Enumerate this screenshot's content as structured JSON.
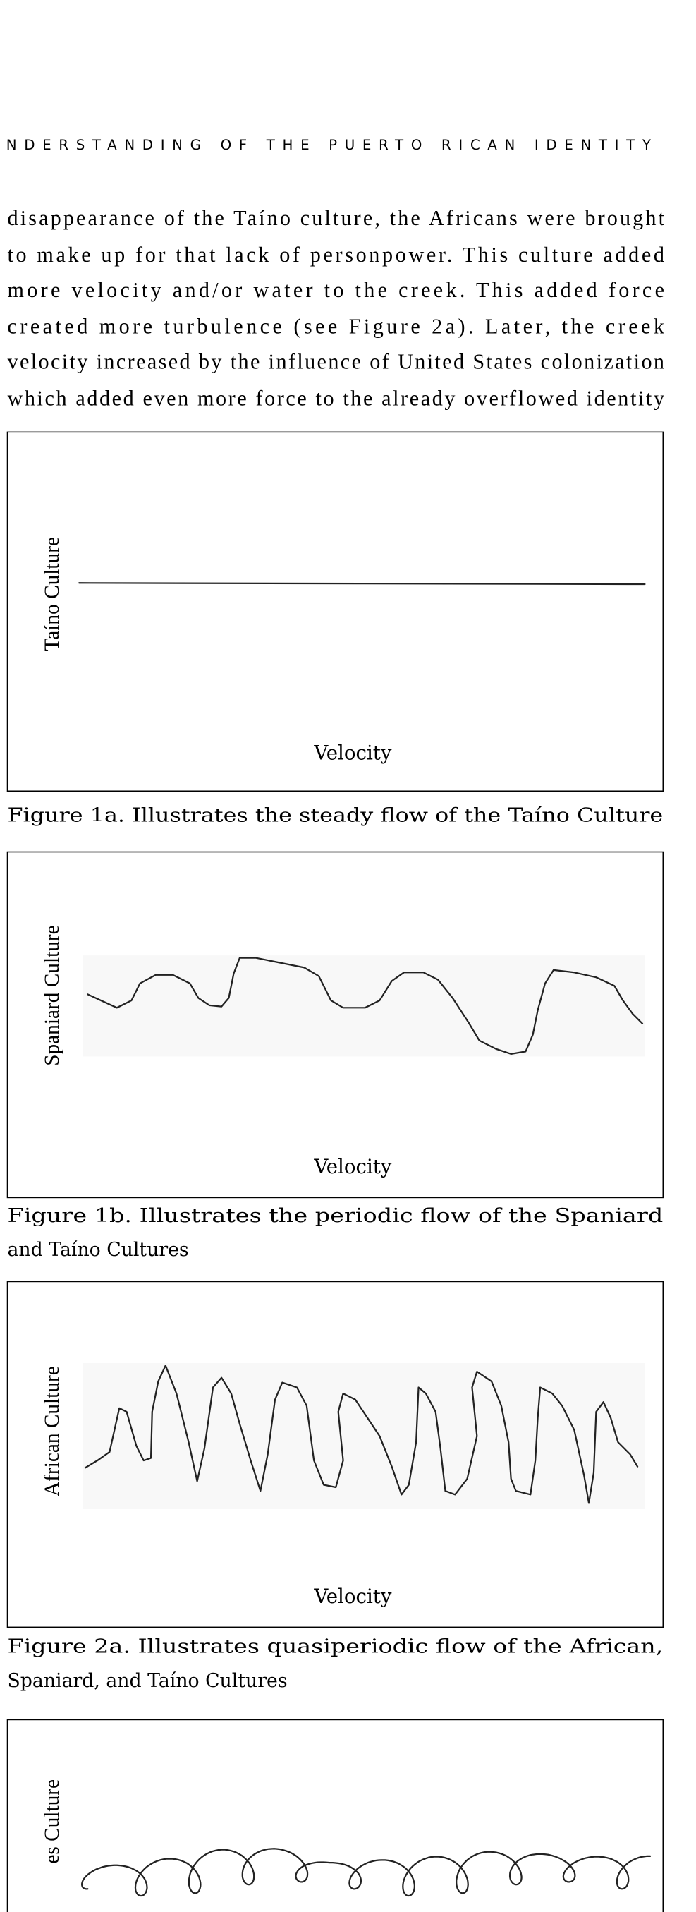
{
  "header": {
    "running_title": "NDERSTANDING OF THE PUERTO RICAN IDENTITY"
  },
  "body": {
    "lines": [
      "disappearance of the Taíno culture, the Africans were brought",
      "to make up for that lack of personpower. This culture added",
      "more velocity and/or water to the creek. This added force",
      "created more turbulence (see Figure 2a). Later, the creek",
      "velocity increased by the influence of United States colonization",
      "which added even more force to the already overflowed identity"
    ]
  },
  "figures": [
    {
      "y_label": "Taíno Culture",
      "x_label": "Velocity",
      "caption": [
        "Figure 1a. Illustrates the steady flow of the Taíno Culture"
      ]
    },
    {
      "y_label": "Spaniard Culture",
      "x_label": "Velocity",
      "caption": [
        "Figure 1b. Illustrates the periodic flow of the Spaniard",
        "and Taíno Cultures"
      ]
    },
    {
      "y_label": "African Culture",
      "x_label": "Velocity",
      "caption": [
        "Figure 2a. Illustrates quasiperiodic flow of the African,",
        "Spaniard, and Taíno Cultures"
      ]
    },
    {
      "y_label": "es Culture"
    }
  ]
}
